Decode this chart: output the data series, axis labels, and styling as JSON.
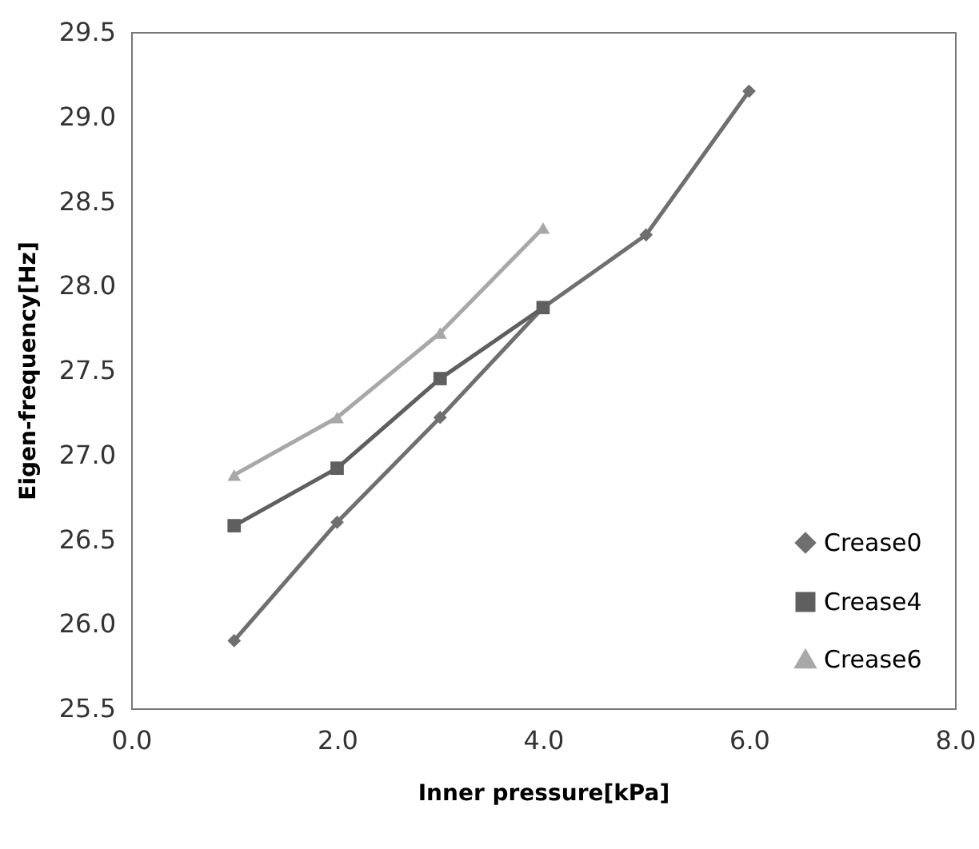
{
  "chart_data": {
    "type": "line",
    "xlabel": "Inner pressure[kPa]",
    "ylabel": "Eigen-frequency[Hz]",
    "x": [
      1,
      2,
      3,
      4,
      5,
      6
    ],
    "series": [
      {
        "name": "Crease0",
        "color": "#6f6f6f",
        "marker": "diamond",
        "values": [
          25.9,
          26.6,
          27.22,
          27.87,
          28.3,
          29.15
        ]
      },
      {
        "name": "Crease4",
        "color": "#5f5f5f",
        "marker": "square",
        "values": [
          26.58,
          26.92,
          27.45,
          27.87,
          null,
          null
        ]
      },
      {
        "name": "Crease6",
        "color": "#a8a8a8",
        "marker": "triangle",
        "values": [
          26.88,
          27.22,
          27.72,
          28.34,
          null,
          null
        ]
      }
    ],
    "xlim": [
      0,
      8
    ],
    "xticks": [
      {
        "value": 0,
        "label": "0.0"
      },
      {
        "value": 2,
        "label": "2.0"
      },
      {
        "value": 4,
        "label": "4.0"
      },
      {
        "value": 6,
        "label": "6.0"
      },
      {
        "value": 8,
        "label": "8.0"
      }
    ],
    "ylim": [
      25.5,
      29.5
    ],
    "yticks": [
      {
        "value": 25.5,
        "label": "25.5"
      },
      {
        "value": 26,
        "label": "26.0"
      },
      {
        "value": 26.5,
        "label": "26.5"
      },
      {
        "value": 27,
        "label": "27.0"
      },
      {
        "value": 27.5,
        "label": "27.5"
      },
      {
        "value": 28,
        "label": "28.0"
      },
      {
        "value": 28.5,
        "label": "28.5"
      },
      {
        "value": 29,
        "label": "29.0"
      },
      {
        "value": 29.5,
        "label": "29.5"
      }
    ],
    "grid": false,
    "legend": "bottom right",
    "line_style": "solid"
  }
}
